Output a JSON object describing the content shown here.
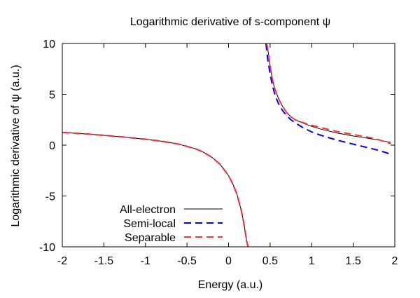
{
  "chart_data": {
    "type": "line",
    "title": "Logarithmic derivative of s-component ψ",
    "xlabel": "Energy (a.u.)",
    "ylabel": "Logarithmic derivative of ψ (a.u.)",
    "xlim": [
      -2,
      2
    ],
    "ylim": [
      -10,
      10
    ],
    "x_ticks": [
      -2,
      -1.5,
      -1,
      -0.5,
      0,
      0.5,
      1,
      1.5,
      2
    ],
    "y_ticks": [
      -10,
      -5,
      0,
      5,
      10
    ],
    "x_tick_labels": [
      "-2",
      "-1.5",
      "-1",
      "-0.5",
      "0",
      "0.5",
      "1",
      "1.5",
      "2"
    ],
    "y_tick_labels": [
      "-10",
      "-5",
      "0",
      "5",
      "10"
    ],
    "grid": false,
    "legend_position": "bottom-left",
    "series": [
      {
        "name": "All-electron",
        "color": "#000000",
        "dash": "solid",
        "branches": [
          {
            "x": [
              -2.0,
              -1.8,
              -1.6,
              -1.4,
              -1.2,
              -1.0,
              -0.8,
              -0.6,
              -0.4,
              -0.3,
              -0.2,
              -0.1,
              0.0,
              0.05,
              0.1,
              0.15,
              0.18,
              0.2,
              0.22,
              0.235
            ],
            "y": [
              1.25,
              1.15,
              1.03,
              0.9,
              0.75,
              0.58,
              0.38,
              0.1,
              -0.35,
              -0.7,
              -1.2,
              -1.9,
              -3.0,
              -3.8,
              -4.8,
              -6.3,
              -7.5,
              -8.5,
              -9.5,
              -10.0
            ]
          },
          {
            "x": [
              0.46,
              0.48,
              0.5,
              0.52,
              0.55,
              0.6,
              0.65,
              0.7,
              0.75,
              0.8,
              0.9,
              1.0,
              1.1,
              1.2,
              1.3,
              1.4,
              1.5,
              1.6,
              1.7,
              1.8,
              1.9,
              1.95
            ],
            "y": [
              10.0,
              9.0,
              7.8,
              6.8,
              5.7,
              4.6,
              3.8,
              3.2,
              2.8,
              2.5,
              2.15,
              1.85,
              1.6,
              1.4,
              1.2,
              1.05,
              0.9,
              0.78,
              0.65,
              0.5,
              0.35,
              0.28
            ]
          }
        ]
      },
      {
        "name": "Semi-local",
        "color": "#0000ff",
        "dash": "dashed",
        "branches": [
          {
            "x": [
              -2.0,
              -1.8,
              -1.6,
              -1.4,
              -1.2,
              -1.0,
              -0.8,
              -0.6,
              -0.4,
              -0.3,
              -0.2,
              -0.1,
              0.0,
              0.05,
              0.1,
              0.15,
              0.18,
              0.2,
              0.22,
              0.235
            ],
            "y": [
              1.25,
              1.15,
              1.03,
              0.9,
              0.75,
              0.58,
              0.38,
              0.1,
              -0.35,
              -0.7,
              -1.2,
              -1.9,
              -3.0,
              -3.8,
              -4.8,
              -6.3,
              -7.5,
              -8.5,
              -9.5,
              -10.0
            ]
          },
          {
            "x": [
              0.45,
              0.47,
              0.5,
              0.53,
              0.56,
              0.6,
              0.65,
              0.7,
              0.75,
              0.8,
              0.9,
              1.0,
              1.1,
              1.2,
              1.3,
              1.4,
              1.5,
              1.6,
              1.7,
              1.8,
              1.9,
              1.95
            ],
            "y": [
              10.0,
              8.5,
              7.0,
              5.8,
              4.9,
              4.1,
              3.4,
              2.9,
              2.5,
              2.2,
              1.7,
              1.3,
              1.0,
              0.75,
              0.5,
              0.3,
              0.1,
              -0.1,
              -0.3,
              -0.5,
              -0.75,
              -0.9
            ]
          }
        ]
      },
      {
        "name": "Separable",
        "color": "#ff3333",
        "dash": "dashed",
        "branches": [
          {
            "x": [
              -2.0,
              -1.8,
              -1.6,
              -1.4,
              -1.2,
              -1.0,
              -0.8,
              -0.6,
              -0.4,
              -0.3,
              -0.2,
              -0.1,
              0.0,
              0.05,
              0.1,
              0.15,
              0.18,
              0.2,
              0.22,
              0.235
            ],
            "y": [
              1.25,
              1.15,
              1.03,
              0.9,
              0.75,
              0.58,
              0.38,
              0.1,
              -0.35,
              -0.7,
              -1.2,
              -1.9,
              -3.0,
              -3.8,
              -4.8,
              -6.3,
              -7.5,
              -8.5,
              -9.5,
              -10.0
            ]
          },
          {
            "x": [
              0.46,
              0.48,
              0.5,
              0.52,
              0.55,
              0.6,
              0.65,
              0.7,
              0.75,
              0.8,
              0.9,
              1.0,
              1.1,
              1.2,
              1.3,
              1.4,
              1.5,
              1.6,
              1.7,
              1.8,
              1.9,
              1.95
            ],
            "y": [
              10.0,
              9.0,
              7.8,
              6.8,
              5.7,
              4.6,
              3.8,
              3.2,
              2.8,
              2.5,
              2.2,
              1.95,
              1.75,
              1.55,
              1.35,
              1.2,
              1.05,
              0.9,
              0.75,
              0.55,
              0.3,
              0.15
            ]
          }
        ]
      }
    ]
  }
}
